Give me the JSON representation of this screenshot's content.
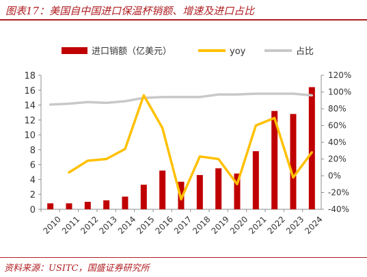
{
  "header": {
    "title": "图表17：美国自中国进口保温杯销额、增速及进口占比"
  },
  "footer": {
    "source": "资料来源：USITC，国盛证券研究所"
  },
  "colors": {
    "bar": "#c00000",
    "yoy": "#ffc000",
    "share": "#c8c8c8",
    "accent": "#b01e23"
  },
  "chart_data": {
    "type": "bar",
    "title": "",
    "categories": [
      "2010",
      "2011",
      "2012",
      "2013",
      "2014",
      "2015",
      "2016",
      "2017",
      "2018",
      "2019",
      "2020",
      "2021",
      "2022",
      "2023",
      "2024"
    ],
    "series": [
      {
        "name": "进口销额（亿美元）",
        "type": "bar",
        "axis": "left",
        "values": [
          0.8,
          0.8,
          1.0,
          1.2,
          1.7,
          3.3,
          5.2,
          3.7,
          4.6,
          5.5,
          4.8,
          7.8,
          13.2,
          12.8,
          16.4
        ]
      },
      {
        "name": "yoy",
        "type": "line",
        "axis": "right",
        "unit": "%",
        "values": [
          null,
          4,
          18,
          20,
          32,
          96,
          57,
          -28,
          23,
          20,
          -10,
          60,
          69,
          -2,
          28
        ]
      },
      {
        "name": "占比",
        "type": "line",
        "axis": "right",
        "unit": "%",
        "values": [
          85,
          86,
          88,
          87,
          89,
          93,
          94,
          94,
          94,
          97,
          97,
          98,
          98,
          98,
          96
        ]
      }
    ],
    "left_axis": {
      "ylim": [
        0,
        18
      ],
      "ticks": [
        "0",
        "2",
        "4",
        "6",
        "8",
        "10",
        "12",
        "14",
        "16",
        "18"
      ]
    },
    "right_axis": {
      "ylim": [
        -40,
        120
      ],
      "ticks": [
        "-40%",
        "-20%",
        "0%",
        "20%",
        "40%",
        "60%",
        "80%",
        "100%",
        "120%"
      ]
    },
    "legend_position": "top",
    "grid": false
  }
}
